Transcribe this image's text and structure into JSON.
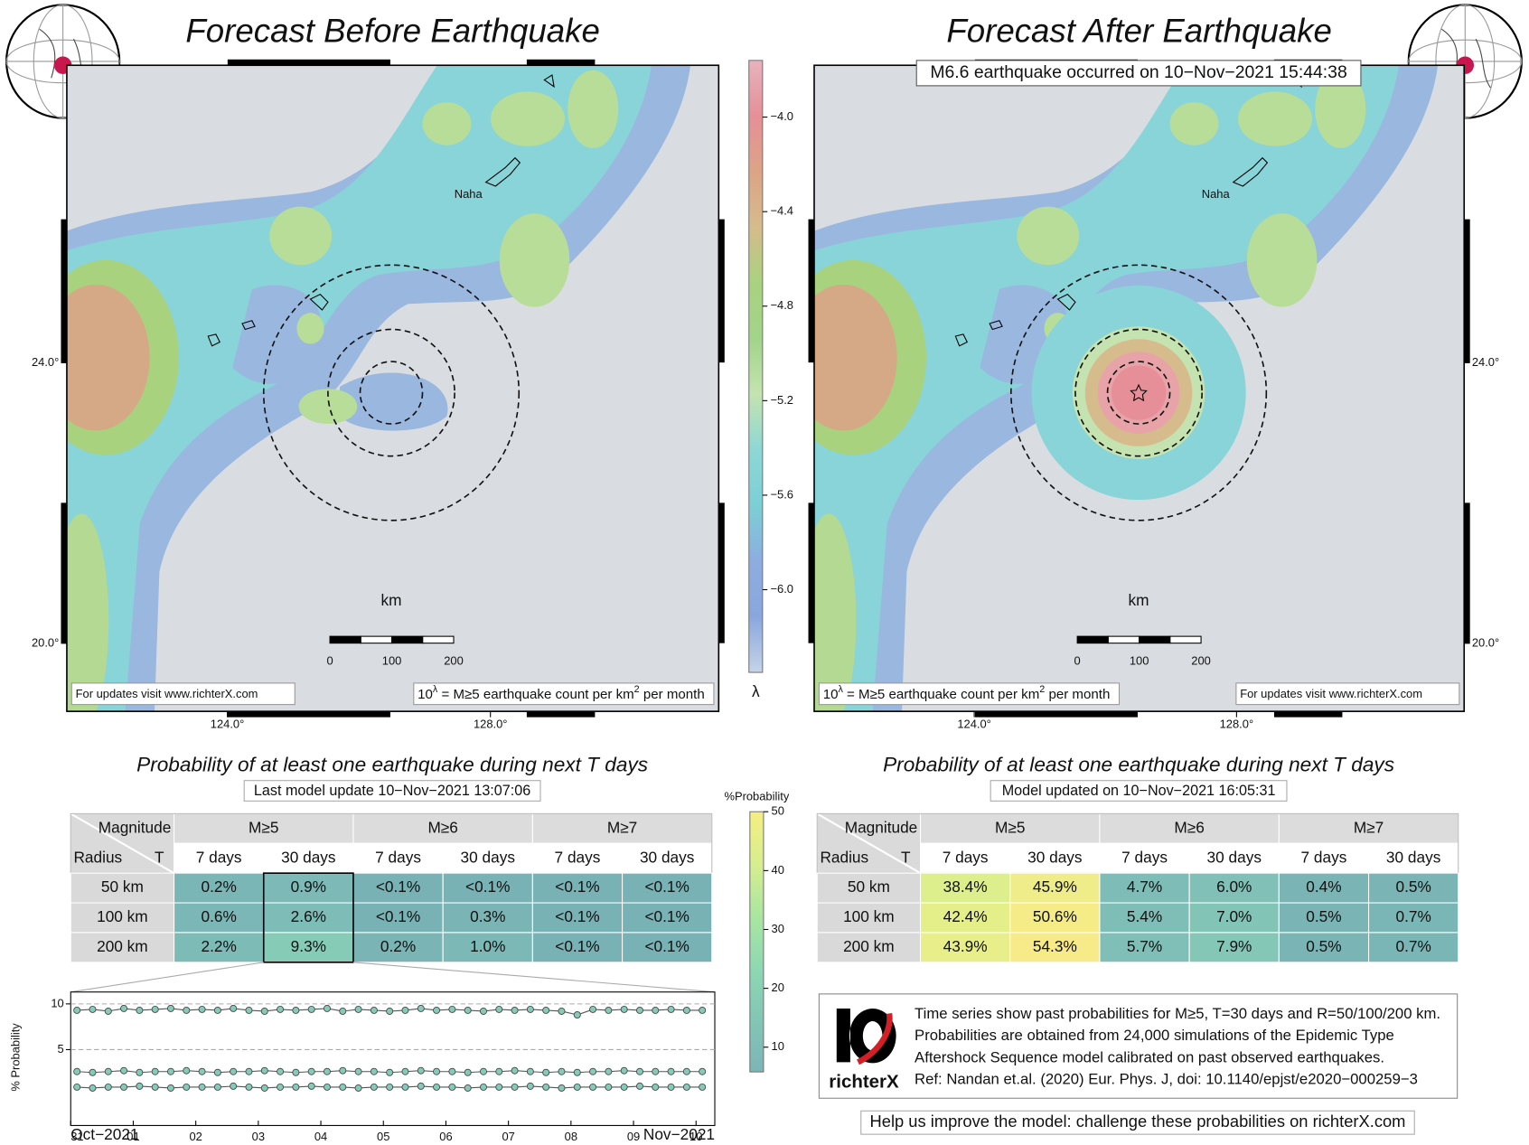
{
  "maps": [
    {
      "title": "Forecast Before Earthquake",
      "city": "Naha",
      "scale_unit": "km",
      "scale_labels": [
        0,
        100,
        200
      ],
      "lat_labels": [
        {
          "value": 24,
          "label": "24.0°"
        },
        {
          "value": 20,
          "label": "20.0°"
        }
      ],
      "lon_labels": [
        {
          "value": 124,
          "label": "124.0°"
        },
        {
          "value": 128,
          "label": "128.0°"
        }
      ],
      "latlim": [
        19.03,
        28.24
      ],
      "lonlim": [
        121.56,
        131.47
      ],
      "label_side": "left",
      "event": false,
      "updates": "For updates visit www.richterX.com",
      "note": {
        "base": "10",
        "exp": "λ",
        "text": " = M≥5 earthquake count per km",
        "exp2": "2",
        "tail": " per month"
      }
    },
    {
      "title": "Forecast After Earthquake",
      "subtitle": "M6.6 earthquake occurred on 10−Nov−2021 15:44:38",
      "city": "Naha",
      "scale_unit": "km",
      "scale_labels": [
        0,
        100,
        200
      ],
      "lat_labels": [
        {
          "value": 24,
          "label": "24.0°"
        },
        {
          "value": 20,
          "label": "20.0°"
        }
      ],
      "lon_labels": [
        {
          "value": 124,
          "label": "124.0°"
        },
        {
          "value": 128,
          "label": "128.0°"
        }
      ],
      "latlim": [
        19.03,
        28.24
      ],
      "lonlim": [
        121.56,
        131.47
      ],
      "label_side": "right",
      "event": true,
      "updates": "For updates visit www.richterX.com",
      "note": {
        "base": "10",
        "exp": "λ",
        "text": " = M≥5 earthquake count per km",
        "exp2": "2",
        "tail": " per month"
      }
    }
  ],
  "rate_colorbar": {
    "symbol": "λ",
    "lim": [
      -6.35,
      -3.76
    ],
    "ticks": [
      {
        "value": -4.0,
        "label": "−4.0"
      },
      {
        "value": -4.4,
        "label": "−4.4"
      },
      {
        "value": -4.8,
        "label": "−4.8"
      },
      {
        "value": -5.2,
        "label": "−5.2"
      },
      {
        "value": -5.6,
        "label": "−5.6"
      },
      {
        "value": -6.0,
        "label": "−6.0"
      }
    ],
    "colors": [
      "#e7b3bd",
      "#e68f99",
      "#dca486",
      "#d6bb8c",
      "#a9d27f",
      "#a2d48a",
      "#c4e3b0",
      "#8ed7d6",
      "#7ccfd6",
      "#8dade0",
      "#8aa7dd",
      "#c6d3e8"
    ]
  },
  "tables": [
    {
      "title": "Probability of at least one earthquake during next T days",
      "subtitle": "Last model update 10−Nov−2021 13:07:06",
      "magnitude": "Magnitude",
      "radius": "Radius",
      "t": "T",
      "groups": [
        "M≥5",
        "M≥6",
        "M≥7"
      ],
      "periods": [
        "7 days",
        "30 days"
      ],
      "rows": [
        {
          "radius": "50 km",
          "cells": [
            "0.2%",
            "0.9%",
            "<0.1%",
            "<0.1%",
            "<0.1%",
            "<0.1%"
          ],
          "colors": [
            "#7ab6b6",
            "#7cb9b7",
            "#79b2b5",
            "#79b2b5",
            "#79b2b5",
            "#79b2b5"
          ]
        },
        {
          "radius": "100 km",
          "cells": [
            "0.6%",
            "2.6%",
            "<0.1%",
            "0.3%",
            "<0.1%",
            "<0.1%"
          ],
          "colors": [
            "#7bb7b6",
            "#7ebcb7",
            "#79b2b5",
            "#7ab4b5",
            "#79b2b5",
            "#79b2b5"
          ]
        },
        {
          "radius": "200 km",
          "cells": [
            "2.2%",
            "9.3%",
            "0.2%",
            "1.0%",
            "<0.1%",
            "<0.1%"
          ],
          "colors": [
            "#7dbbb7",
            "#86cbb5",
            "#7ab4b5",
            "#7cb8b6",
            "#79b2b5",
            "#79b2b5"
          ]
        }
      ]
    },
    {
      "title": "Probability of at least one earthquake during next T days",
      "subtitle": "Model updated on 10−Nov−2021 16:05:31",
      "magnitude": "Magnitude",
      "radius": "Radius",
      "t": "T",
      "groups": [
        "M≥5",
        "M≥6",
        "M≥7"
      ],
      "periods": [
        "7 days",
        "30 days"
      ],
      "rows": [
        {
          "radius": "50 km",
          "cells": [
            "38.4%",
            "45.9%",
            "4.7%",
            "6.0%",
            "0.4%",
            "0.5%"
          ],
          "colors": [
            "#dcef8c",
            "#eeed8a",
            "#7ebcb7",
            "#80c0b7",
            "#7ab4b5",
            "#7ab4b5"
          ]
        },
        {
          "radius": "100 km",
          "cells": [
            "42.4%",
            "50.6%",
            "5.4%",
            "7.0%",
            "0.5%",
            "0.7%"
          ],
          "colors": [
            "#e5ef8a",
            "#f5ec88",
            "#7fbeb7",
            "#82c4b6",
            "#7ab4b5",
            "#7bb6b6"
          ]
        },
        {
          "radius": "200 km",
          "cells": [
            "43.9%",
            "54.3%",
            "5.7%",
            "7.9%",
            "0.5%",
            "0.7%"
          ],
          "colors": [
            "#e8ef8a",
            "#f7ea88",
            "#80bfb7",
            "#84c7b6",
            "#7ab4b5",
            "#7bb6b6"
          ]
        }
      ]
    }
  ],
  "prob_colorbar": {
    "label": "%Probability",
    "lim": [
      5.8,
      50
    ],
    "ticks": [
      10,
      20,
      30,
      40,
      50
    ],
    "colors": [
      "#f6ee82",
      "#d7ee8e",
      "#a9e6a0",
      "#8ed8b2",
      "#82c6b5",
      "#7cb5b6"
    ]
  },
  "chart_data": {
    "type": "line",
    "y_label": "% Probability",
    "color": "#86cbb8",
    "line_color": "#555",
    "x": [
      0.1,
      0.35,
      0.6,
      0.85,
      1.1,
      1.35,
      1.6,
      1.85,
      2.1,
      2.35,
      2.6,
      2.85,
      3.1,
      3.35,
      3.6,
      3.85,
      4.1,
      4.35,
      4.6,
      4.85,
      5.1,
      5.35,
      5.6,
      5.85,
      6.1,
      6.35,
      6.6,
      6.85,
      7.1,
      7.35,
      7.6,
      7.85,
      8.1,
      8.35,
      8.6,
      8.85,
      9.1,
      9.35,
      9.6,
      9.85,
      10.1
    ],
    "series": [
      {
        "name": "200 km",
        "values": [
          9.3,
          9.4,
          9.2,
          9.5,
          9.3,
          9.4,
          9.5,
          9.3,
          9.4,
          9.3,
          9.5,
          9.3,
          9.2,
          9.4,
          9.3,
          9.4,
          9.5,
          9.2,
          9.4,
          9.3,
          9.2,
          9.3,
          9.5,
          9.3,
          9.4,
          9.3,
          9.2,
          9.4,
          9.3,
          9.4,
          9.3,
          9.2,
          8.8,
          9.4,
          9.3,
          9.4,
          9.3,
          9.3,
          9.4,
          9.3,
          9.3
        ]
      },
      {
        "name": "100 km",
        "values": [
          2.6,
          2.5,
          2.6,
          2.7,
          2.5,
          2.6,
          2.6,
          2.7,
          2.6,
          2.5,
          2.6,
          2.6,
          2.7,
          2.6,
          2.5,
          2.6,
          2.6,
          2.7,
          2.6,
          2.6,
          2.5,
          2.6,
          2.7,
          2.6,
          2.6,
          2.5,
          2.6,
          2.6,
          2.7,
          2.6,
          2.5,
          2.6,
          2.5,
          2.6,
          2.6,
          2.7,
          2.6,
          2.6,
          2.6,
          2.6,
          2.6
        ]
      },
      {
        "name": "50 km",
        "values": [
          0.9,
          0.8,
          0.9,
          0.9,
          1.0,
          0.9,
          0.8,
          0.9,
          0.9,
          0.9,
          1.0,
          0.9,
          0.8,
          0.9,
          0.9,
          1.0,
          0.9,
          0.9,
          0.8,
          0.9,
          0.9,
          0.9,
          1.0,
          0.9,
          0.9,
          0.8,
          0.9,
          0.9,
          0.9,
          1.0,
          0.9,
          0.8,
          0.9,
          0.9,
          0.9,
          0.9,
          1.0,
          0.9,
          0.9,
          0.9,
          0.9
        ]
      }
    ],
    "xlim": [
      0,
      10.3
    ],
    "ylim": [
      -3.3,
      11.3
    ],
    "xticks": [
      {
        "value": 0,
        "label": "31"
      },
      {
        "value": 1,
        "label": "01"
      },
      {
        "value": 2,
        "label": "02"
      },
      {
        "value": 3,
        "label": "03"
      },
      {
        "value": 4,
        "label": "04"
      },
      {
        "value": 5,
        "label": "05"
      },
      {
        "value": 6,
        "label": "06"
      },
      {
        "value": 7,
        "label": "07"
      },
      {
        "value": 8,
        "label": "08"
      },
      {
        "value": 9,
        "label": "09"
      },
      {
        "value": 10,
        "label": "10"
      }
    ],
    "yticks": [
      5,
      10
    ],
    "grid": true,
    "month_start": "Oct−2021",
    "month_end": "Nov−2021"
  },
  "info": {
    "lines": [
      "Time series show past probabilities for M≥5, T=30 days and R=50/100/200 km.",
      "Probabilities are obtained from 24,000 simulations of the Epidemic Type",
      "Aftershock Sequence model calibrated on past observed earthquakes.",
      "Ref: Nandan et.al. (2020) Eur. Phys. J, doi: 10.1140/epjst/e2020−000259−3"
    ],
    "logo": "richterX"
  },
  "footer": "Help us improve the model: challenge these probabilities on richterX.com"
}
